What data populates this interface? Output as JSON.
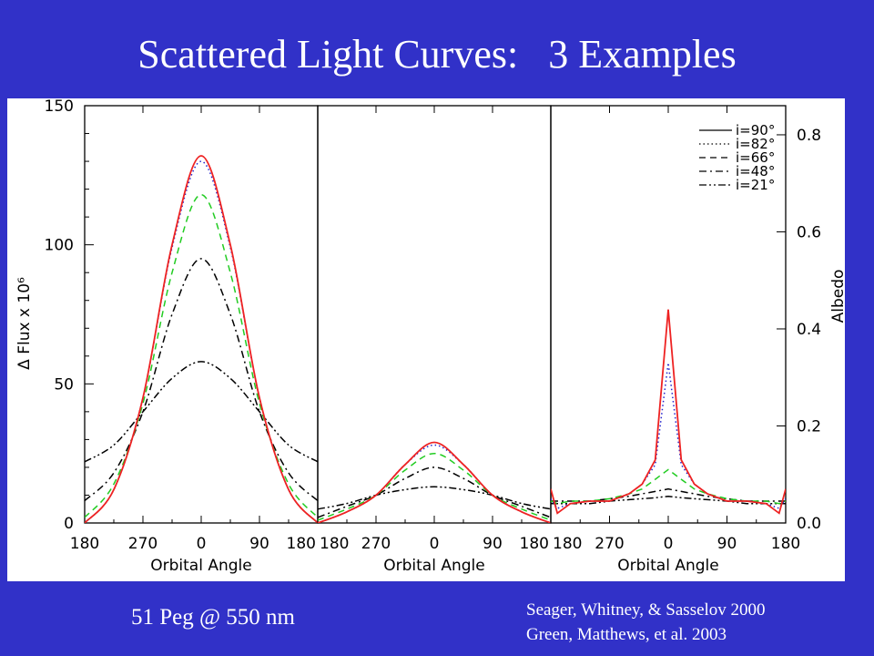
{
  "slide": {
    "title": "Scattered Light Curves:   3 Examples",
    "caption": "51 Peg @ 550 nm",
    "credits": [
      "Seager, Whitney, & Sasselov 2000",
      "Green, Matthews, et al. 2003"
    ]
  },
  "colors": {
    "background": "#3131c8",
    "plot_bg": "#ffffff",
    "text": "#ffffff",
    "red": "#ee2222",
    "blue": "#2222cc",
    "green": "#22cc22",
    "black": "#000000"
  },
  "chart_data": [
    {
      "type": "line",
      "panel": 1,
      "x": [
        180,
        225,
        270,
        315,
        0,
        45,
        90,
        135,
        180
      ],
      "x_ticks": [
        "180",
        "270",
        "0",
        "90",
        "180"
      ],
      "xlabel": "Orbital Angle",
      "ylabel": "Δ Flux x 10⁶",
      "y_ticks": [
        "0",
        "50",
        "100",
        "150"
      ],
      "ylim": [
        0,
        150
      ],
      "series": [
        {
          "name": "i=90°",
          "style": "solid",
          "color": "#ee2222",
          "values": [
            0,
            12,
            45,
            100,
            132,
            100,
            45,
            12,
            0
          ]
        },
        {
          "name": "i=82°",
          "style": "dotted",
          "color": "#2222cc",
          "values": [
            0,
            12,
            45,
            99,
            130,
            99,
            45,
            12,
            0
          ]
        },
        {
          "name": "i=66°",
          "style": "dashed",
          "color": "#22cc22",
          "values": [
            2,
            14,
            43,
            90,
            118,
            90,
            43,
            14,
            2
          ]
        },
        {
          "name": "i=48°",
          "style": "dash-dot",
          "color": "#000000",
          "values": [
            8,
            18,
            40,
            75,
            95,
            75,
            40,
            18,
            8
          ]
        },
        {
          "name": "i=21°",
          "style": "dash-dot-dot",
          "color": "#000000",
          "values": [
            22,
            28,
            40,
            52,
            58,
            52,
            40,
            28,
            22
          ]
        }
      ]
    },
    {
      "type": "line",
      "panel": 2,
      "x": [
        180,
        225,
        270,
        315,
        0,
        45,
        90,
        135,
        180
      ],
      "x_ticks": [
        "180",
        "270",
        "0",
        "90",
        "180"
      ],
      "xlabel": "Orbital Angle",
      "ylim": [
        0,
        150
      ],
      "series": [
        {
          "name": "i=90°",
          "style": "solid",
          "color": "#ee2222",
          "values": [
            0,
            4,
            10,
            21,
            29,
            21,
            10,
            4,
            0
          ]
        },
        {
          "name": "i=82°",
          "style": "dotted",
          "color": "#2222cc",
          "values": [
            0,
            4,
            10,
            21,
            28,
            21,
            10,
            4,
            0
          ]
        },
        {
          "name": "i=66°",
          "style": "dashed",
          "color": "#22cc22",
          "values": [
            1,
            5,
            10,
            19,
            25,
            19,
            10,
            5,
            1
          ]
        },
        {
          "name": "i=48°",
          "style": "dash-dot",
          "color": "#000000",
          "values": [
            2,
            6,
            10,
            16,
            20,
            16,
            10,
            6,
            2
          ]
        },
        {
          "name": "i=21°",
          "style": "dash-dot-dot",
          "color": "#000000",
          "values": [
            5,
            7,
            10,
            12,
            13,
            12,
            10,
            7,
            5
          ]
        }
      ]
    },
    {
      "type": "line",
      "panel": 3,
      "x": [
        180,
        170,
        150,
        120,
        90,
        60,
        40,
        20,
        0,
        -20,
        -40,
        -60,
        -90,
        -120,
        -150,
        -170,
        -180
      ],
      "x_ticks": [
        "180",
        "270",
        "0",
        "90",
        "180"
      ],
      "xlabel": "Orbital Angle",
      "ylabel": "Albedo",
      "y_ticks": [
        "0.0",
        "0.2",
        "0.4",
        "0.6",
        "0.8"
      ],
      "ylim": [
        0,
        0.86
      ],
      "series": [
        {
          "name": "i=90°",
          "style": "solid",
          "color": "#ee2222",
          "values": [
            0.07,
            0.02,
            0.04,
            0.045,
            0.045,
            0.06,
            0.08,
            0.13,
            0.44,
            0.13,
            0.08,
            0.06,
            0.045,
            0.045,
            0.04,
            0.02,
            0.07
          ]
        },
        {
          "name": "i=82°",
          "style": "dotted",
          "color": "#2222cc",
          "values": [
            0.05,
            0.03,
            0.04,
            0.045,
            0.045,
            0.06,
            0.08,
            0.12,
            0.33,
            0.12,
            0.08,
            0.06,
            0.045,
            0.045,
            0.04,
            0.03,
            0.05
          ]
        },
        {
          "name": "i=66°",
          "style": "dashed",
          "color": "#22cc22",
          "values": [
            0.045,
            0.04,
            0.045,
            0.045,
            0.05,
            0.06,
            0.07,
            0.09,
            0.11,
            0.09,
            0.07,
            0.06,
            0.05,
            0.045,
            0.045,
            0.04,
            0.045
          ]
        },
        {
          "name": "i=48°",
          "style": "dash-dot",
          "color": "#000000",
          "values": [
            0.045,
            0.045,
            0.045,
            0.045,
            0.05,
            0.055,
            0.06,
            0.065,
            0.07,
            0.065,
            0.06,
            0.055,
            0.05,
            0.045,
            0.045,
            0.045,
            0.045
          ]
        },
        {
          "name": "i=21°",
          "style": "dash-dot-dot",
          "color": "#000000",
          "values": [
            0.04,
            0.04,
            0.04,
            0.04,
            0.045,
            0.048,
            0.05,
            0.052,
            0.055,
            0.052,
            0.05,
            0.048,
            0.045,
            0.04,
            0.04,
            0.04,
            0.04
          ]
        }
      ],
      "legend": {
        "placement": "top-right",
        "entries": [
          "i=90°",
          "i=82°",
          "i=66°",
          "i=48°",
          "i=21°"
        ]
      }
    }
  ]
}
